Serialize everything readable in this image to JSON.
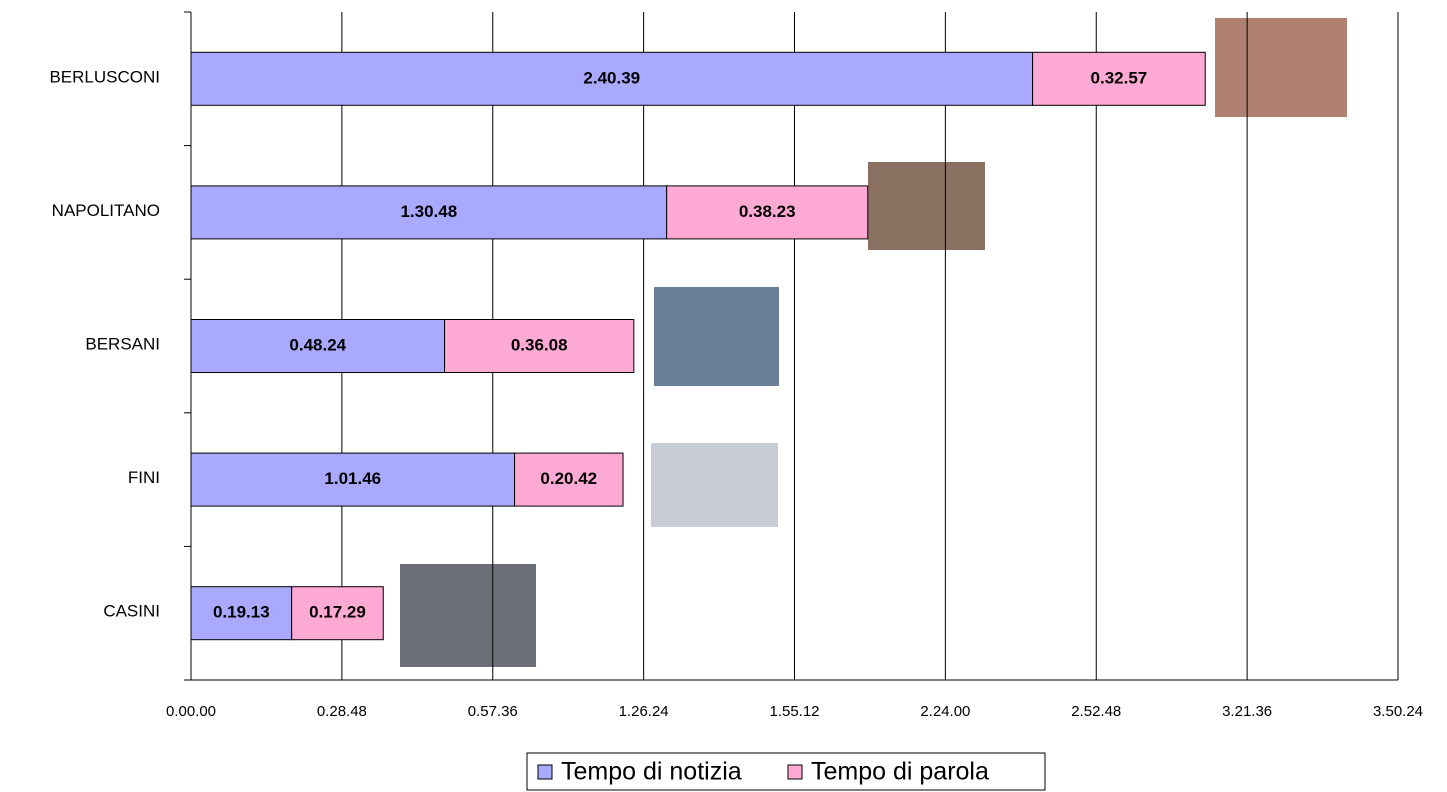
{
  "chart_data": {
    "type": "stacked-bar-horizontal",
    "categories": [
      "BERLUSCONI",
      "NAPOLITANO",
      "BERSANI",
      "FINI",
      "CASINI"
    ],
    "series": [
      {
        "name": "Tempo di notizia",
        "color": "#a9a9ff",
        "values": [
          9639,
          5448,
          2904,
          3706,
          1153
        ],
        "value_labels": [
          "2.40.39",
          "1.30.48",
          "0.48.24",
          "1.01.46",
          "0.19.13"
        ]
      },
      {
        "name": "Tempo di parola",
        "color": "#ffaad4",
        "values": [
          1977,
          2303,
          2168,
          1242,
          1049
        ],
        "value_labels": [
          "0.32.57",
          "0.38.23",
          "0.36.08",
          "0.20.42",
          "0.17.29"
        ]
      }
    ],
    "xlim": [
      0,
      13824
    ],
    "xticks": [
      {
        "value": 0,
        "label": "0.00.00"
      },
      {
        "value": 1728,
        "label": "0.28.48"
      },
      {
        "value": 3456,
        "label": "0.57.36"
      },
      {
        "value": 5184,
        "label": "1.26.24"
      },
      {
        "value": 6912,
        "label": "1.55.12"
      },
      {
        "value": 8640,
        "label": "2.24.00"
      },
      {
        "value": 10368,
        "label": "2.52.48"
      },
      {
        "value": 12096,
        "label": "3.21.36"
      },
      {
        "value": 13824,
        "label": "3.50.24"
      }
    ],
    "grid": true,
    "legend": "bottom"
  }
}
